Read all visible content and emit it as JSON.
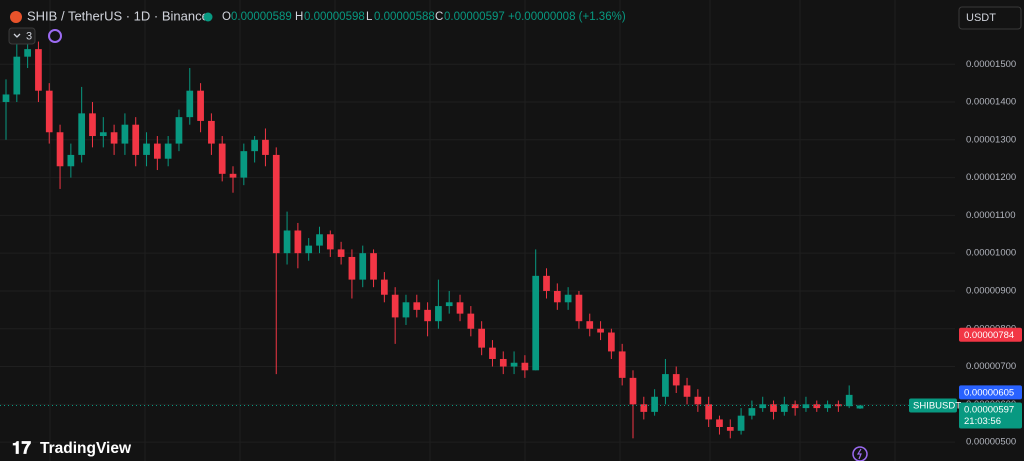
{
  "chart_data": {
    "type": "candlestick",
    "title": "SHIB / TetherUS · 1D · Binance",
    "ohlc_header": [
      [
        "O",
        "0.00000589"
      ],
      [
        "H",
        "0.00000598"
      ],
      [
        "L",
        "0.00000588"
      ],
      [
        "C",
        "0.00000597"
      ]
    ],
    "change": "+0.00000008 (+1.36%)",
    "indicator_count": "3",
    "currency": "USDT",
    "logo": "TradingView",
    "colors": {
      "up": "#089981",
      "down": "#f23645"
    },
    "ylim": [
      4.5e-06,
      1.67e-05
    ],
    "yticks": [
      {
        "value": 1.5e-05,
        "label": "0.00001500"
      },
      {
        "value": 1.4e-05,
        "label": "0.00001400"
      },
      {
        "value": 1.3e-05,
        "label": "0.00001300"
      },
      {
        "value": 1.2e-05,
        "label": "0.00001200"
      },
      {
        "value": 1.1e-05,
        "label": "0.00001100"
      },
      {
        "value": 1e-05,
        "label": "0.00001000"
      },
      {
        "value": 9e-06,
        "label": "0.00000900"
      },
      {
        "value": 8e-06,
        "label": "0.00000800"
      },
      {
        "value": 7e-06,
        "label": "0.00000700"
      },
      {
        "value": 6e-06,
        "label": "0.00000600"
      },
      {
        "value": 5e-06,
        "label": "0.00000500"
      }
    ],
    "ohlc": [
      [
        1.4e-05,
        1.46e-05,
        1.3e-05,
        1.42e-05
      ],
      [
        1.42e-05,
        1.56e-05,
        1.4e-05,
        1.52e-05
      ],
      [
        1.52e-05,
        1.59e-05,
        1.49e-05,
        1.54e-05
      ],
      [
        1.54e-05,
        1.56e-05,
        1.4e-05,
        1.43e-05
      ],
      [
        1.43e-05,
        1.45e-05,
        1.29e-05,
        1.32e-05
      ],
      [
        1.32e-05,
        1.34e-05,
        1.17e-05,
        1.23e-05
      ],
      [
        1.23e-05,
        1.29e-05,
        1.2e-05,
        1.26e-05
      ],
      [
        1.26e-05,
        1.44e-05,
        1.24e-05,
        1.37e-05
      ],
      [
        1.37e-05,
        1.4e-05,
        1.28e-05,
        1.31e-05
      ],
      [
        1.31e-05,
        1.36e-05,
        1.28e-05,
        1.32e-05
      ],
      [
        1.32e-05,
        1.34e-05,
        1.26e-05,
        1.29e-05
      ],
      [
        1.29e-05,
        1.37e-05,
        1.26e-05,
        1.34e-05
      ],
      [
        1.34e-05,
        1.36e-05,
        1.23e-05,
        1.26e-05
      ],
      [
        1.26e-05,
        1.32e-05,
        1.23e-05,
        1.29e-05
      ],
      [
        1.29e-05,
        1.31e-05,
        1.22e-05,
        1.25e-05
      ],
      [
        1.25e-05,
        1.31e-05,
        1.23e-05,
        1.29e-05
      ],
      [
        1.29e-05,
        1.38e-05,
        1.27e-05,
        1.36e-05
      ],
      [
        1.36e-05,
        1.49e-05,
        1.34e-05,
        1.43e-05
      ],
      [
        1.43e-05,
        1.45e-05,
        1.32e-05,
        1.35e-05
      ],
      [
        1.35e-05,
        1.37e-05,
        1.26e-05,
        1.29e-05
      ],
      [
        1.29e-05,
        1.31e-05,
        1.19e-05,
        1.21e-05
      ],
      [
        1.21e-05,
        1.23e-05,
        1.16e-05,
        1.2e-05
      ],
      [
        1.2e-05,
        1.29e-05,
        1.18e-05,
        1.27e-05
      ],
      [
        1.27e-05,
        1.31e-05,
        1.24e-05,
        1.3e-05
      ],
      [
        1.3e-05,
        1.33e-05,
        1.23e-05,
        1.26e-05
      ],
      [
        1.26e-05,
        1.28e-05,
        6.8e-06,
        1e-05
      ],
      [
        1e-05,
        1.11e-05,
        9.7e-06,
        1.06e-05
      ],
      [
        1.06e-05,
        1.08e-05,
        9.6e-06,
        1e-05
      ],
      [
        1e-05,
        1.04e-05,
        9.8e-06,
        1.02e-05
      ],
      [
        1.02e-05,
        1.07e-05,
        1e-05,
        1.05e-05
      ],
      [
        1.05e-05,
        1.06e-05,
        9.9e-06,
        1.01e-05
      ],
      [
        1.01e-05,
        1.03e-05,
        9.7e-06,
        9.9e-06
      ],
      [
        9.9e-06,
        1.01e-05,
        8.8e-06,
        9.3e-06
      ],
      [
        9.3e-06,
        1.02e-05,
        9.1e-06,
        1e-05
      ],
      [
        1e-05,
        1.01e-05,
        9.1e-06,
        9.3e-06
      ],
      [
        9.3e-06,
        9.5e-06,
        8.7e-06,
        8.9e-06
      ],
      [
        8.9e-06,
        9.1e-06,
        7.6e-06,
        8.3e-06
      ],
      [
        8.3e-06,
        8.9e-06,
        8.1e-06,
        8.7e-06
      ],
      [
        8.7e-06,
        8.9e-06,
        8.3e-06,
        8.5e-06
      ],
      [
        8.5e-06,
        8.7e-06,
        7.8e-06,
        8.2e-06
      ],
      [
        8.2e-06,
        9.3e-06,
        8e-06,
        8.6e-06
      ],
      [
        8.6e-06,
        9e-06,
        8.4e-06,
        8.7e-06
      ],
      [
        8.7e-06,
        8.9e-06,
        8.2e-06,
        8.4e-06
      ],
      [
        8.4e-06,
        8.6e-06,
        7.8e-06,
        8e-06
      ],
      [
        8e-06,
        8.2e-06,
        7.3e-06,
        7.5e-06
      ],
      [
        7.5e-06,
        7.7e-06,
        7e-06,
        7.2e-06
      ],
      [
        7.2e-06,
        7.4e-06,
        6.8e-06,
        7e-06
      ],
      [
        7e-06,
        7.4e-06,
        6.8e-06,
        7.1e-06
      ],
      [
        7.1e-06,
        7.3e-06,
        6.7e-06,
        6.9e-06
      ],
      [
        6.9e-06,
        1.01e-05,
        6.9e-06,
        9.4e-06
      ],
      [
        9.4e-06,
        9.6e-06,
        8.8e-06,
        9e-06
      ],
      [
        9e-06,
        9.2e-06,
        8.5e-06,
        8.7e-06
      ],
      [
        8.7e-06,
        9.1e-06,
        8.5e-06,
        8.9e-06
      ],
      [
        8.9e-06,
        9e-06,
        8e-06,
        8.2e-06
      ],
      [
        8.2e-06,
        8.4e-06,
        7.8e-06,
        8e-06
      ],
      [
        8e-06,
        8.2e-06,
        7.7e-06,
        7.9e-06
      ],
      [
        7.9e-06,
        8e-06,
        7.2e-06,
        7.4e-06
      ],
      [
        7.4e-06,
        7.6e-06,
        6.5e-06,
        6.7e-06
      ],
      [
        6.7e-06,
        6.9e-06,
        5.1e-06,
        6e-06
      ],
      [
        6e-06,
        6.2e-06,
        5.6e-06,
        5.8e-06
      ],
      [
        5.8e-06,
        6.4e-06,
        5.7e-06,
        6.2e-06
      ],
      [
        6.2e-06,
        7.2e-06,
        6e-06,
        6.8e-06
      ],
      [
        6.8e-06,
        7e-06,
        6.3e-06,
        6.5e-06
      ],
      [
        6.5e-06,
        6.7e-06,
        6e-06,
        6.2e-06
      ],
      [
        6.2e-06,
        6.4e-06,
        5.8e-06,
        6e-06
      ],
      [
        6e-06,
        6.2e-06,
        5.4e-06,
        5.6e-06
      ],
      [
        5.6e-06,
        5.7e-06,
        5.2e-06,
        5.4e-06
      ],
      [
        5.4e-06,
        5.6e-06,
        5.1e-06,
        5.3e-06
      ],
      [
        5.3e-06,
        5.9e-06,
        5.2e-06,
        5.7e-06
      ],
      [
        5.7e-06,
        6.1e-06,
        5.6e-06,
        5.9e-06
      ],
      [
        5.9e-06,
        6.2e-06,
        5.8e-06,
        6e-06
      ],
      [
        6e-06,
        6.1e-06,
        5.6e-06,
        5.8e-06
      ],
      [
        5.8e-06,
        6.2e-06,
        5.7e-06,
        6e-06
      ],
      [
        6e-06,
        6.1e-06,
        5.7e-06,
        5.9e-06
      ],
      [
        5.9e-06,
        6.2e-06,
        5.8e-06,
        6e-06
      ],
      [
        6e-06,
        6.1e-06,
        5.8e-06,
        5.9e-06
      ],
      [
        5.9e-06,
        6.1e-06,
        5.8e-06,
        6e-06
      ],
      [
        6e-06,
        6.1e-06,
        5.8e-06,
        5.95e-06
      ],
      [
        5.95e-06,
        6.5e-06,
        5.9e-06,
        6.25e-06
      ],
      [
        5.89e-06,
        5.98e-06,
        5.88e-06,
        5.97e-06
      ]
    ],
    "price_tags": [
      {
        "value": 7.84e-06,
        "label": "0.00000784",
        "color": "#f23645"
      },
      {
        "value": 6.05e-06,
        "label": "0.00000605",
        "color": "#2962ff"
      }
    ],
    "last_price": {
      "symbol": "SHIBUSDT",
      "value": 5.97e-06,
      "label": "0.00000597",
      "countdown": "21:03:56",
      "color": "#089981"
    }
  }
}
